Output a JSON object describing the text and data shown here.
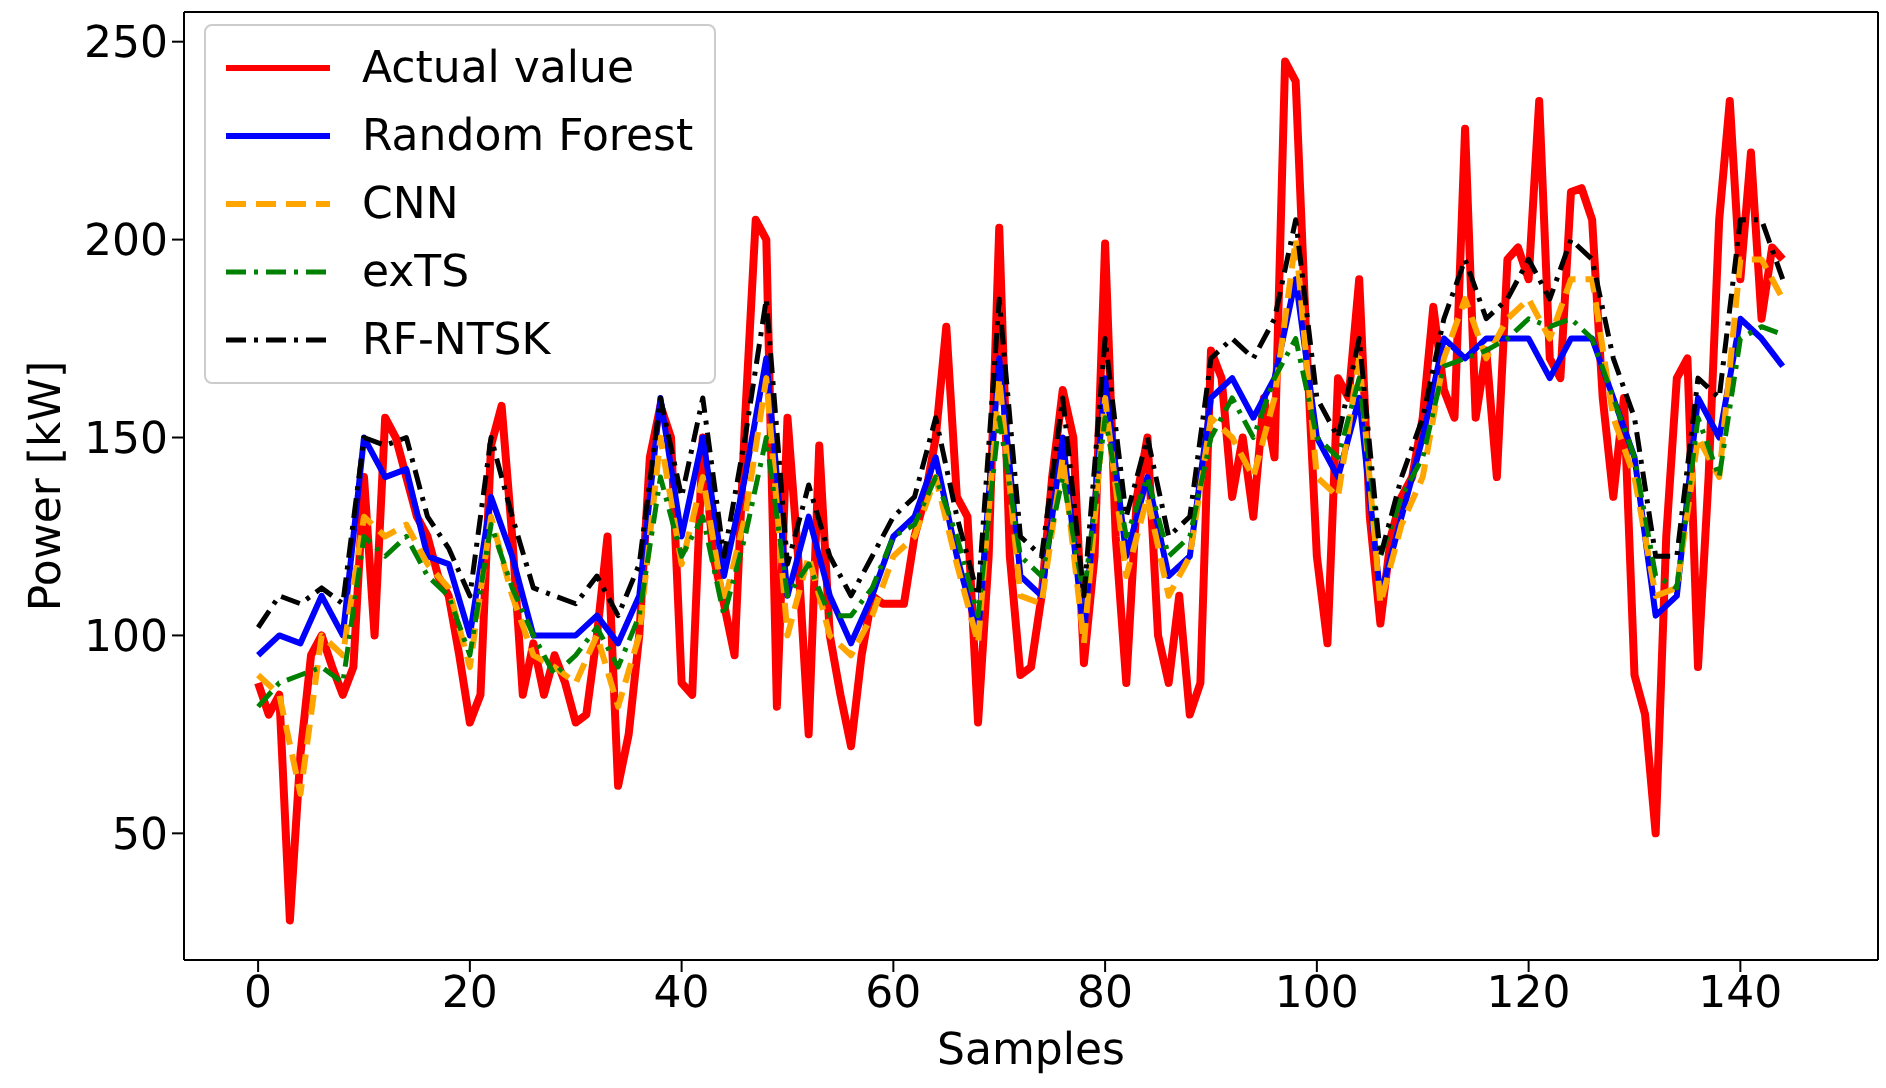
{
  "chart_data": {
    "type": "line",
    "xlabel": "Samples",
    "ylabel": "Power [kW]",
    "xlim": [
      -7,
      153
    ],
    "ylim": [
      18,
      257.5
    ],
    "xticks": [
      0,
      20,
      40,
      60,
      80,
      100,
      120,
      140
    ],
    "yticks": [
      50,
      100,
      150,
      200,
      250
    ],
    "legend": "top left",
    "marker": "none",
    "series": [
      {
        "name": "Actual value",
        "color": "#ff0000",
        "line_style": "solid",
        "x": [
          0,
          1,
          2,
          3,
          4,
          5,
          6,
          7,
          8,
          9,
          10,
          11,
          12,
          13,
          14,
          15,
          16,
          17,
          18,
          19,
          20,
          21,
          22,
          23,
          24,
          25,
          26,
          27,
          28,
          29,
          30,
          31,
          32,
          33,
          34,
          35,
          36,
          37,
          38,
          39,
          40,
          41,
          42,
          43,
          44,
          45,
          46,
          47,
          48,
          49,
          50,
          51,
          52,
          53,
          54,
          55,
          56,
          57,
          58,
          59,
          60,
          61,
          62,
          63,
          64,
          65,
          66,
          67,
          68,
          69,
          70,
          71,
          72,
          73,
          74,
          75,
          76,
          77,
          78,
          79,
          80,
          81,
          82,
          83,
          84,
          85,
          86,
          87,
          88,
          89,
          90,
          91,
          92,
          93,
          94,
          95,
          96,
          97,
          98,
          99,
          100,
          101,
          102,
          103,
          104,
          105,
          106,
          107,
          108,
          109,
          110,
          111,
          112,
          113,
          114,
          115,
          116,
          117,
          118,
          119,
          120,
          121,
          122,
          123,
          124,
          125,
          126,
          127,
          128,
          129,
          130,
          131,
          132,
          133,
          134,
          135,
          136,
          137,
          138,
          139,
          140,
          141,
          142,
          143,
          144
        ],
        "values": [
          88,
          80,
          85,
          28,
          70,
          95,
          100,
          92,
          85,
          92,
          140,
          100,
          155,
          150,
          140,
          130,
          125,
          115,
          110,
          95,
          78,
          85,
          148,
          158,
          125,
          85,
          98,
          85,
          95,
          88,
          78,
          80,
          100,
          125,
          62,
          75,
          100,
          145,
          158,
          150,
          88,
          85,
          150,
          120,
          108,
          95,
          155,
          205,
          200,
          82,
          155,
          120,
          75,
          148,
          100,
          85,
          72,
          95,
          110,
          108,
          108,
          108,
          125,
          135,
          150,
          178,
          135,
          130,
          78,
          120,
          203,
          120,
          90,
          92,
          110,
          140,
          162,
          150,
          93,
          120,
          199,
          125,
          88,
          135,
          150,
          100,
          88,
          110,
          80,
          88,
          172,
          165,
          135,
          150,
          130,
          160,
          145,
          245,
          240,
          175,
          120,
          98,
          165,
          160,
          190,
          130,
          103,
          125,
          135,
          140,
          155,
          183,
          162,
          155,
          228,
          155,
          172,
          140,
          195,
          198,
          190,
          235,
          170,
          165,
          212,
          213,
          205,
          160,
          135,
          160,
          90,
          80,
          50,
          125,
          165,
          170,
          92,
          140,
          205,
          235,
          190,
          222,
          180,
          198,
          195
        ]
      },
      {
        "name": "Random Forest",
        "color": "#0000ff",
        "line_style": "solid",
        "x": [
          0,
          2,
          4,
          6,
          8,
          10,
          12,
          14,
          16,
          18,
          20,
          22,
          24,
          26,
          28,
          30,
          32,
          34,
          36,
          38,
          40,
          42,
          44,
          46,
          48,
          50,
          52,
          54,
          56,
          58,
          60,
          62,
          64,
          66,
          68,
          70,
          72,
          74,
          76,
          78,
          80,
          82,
          84,
          86,
          88,
          90,
          92,
          94,
          96,
          98,
          100,
          102,
          104,
          106,
          108,
          110,
          112,
          114,
          116,
          118,
          120,
          122,
          124,
          126,
          128,
          130,
          132,
          134,
          136,
          138,
          140,
          142,
          144
        ],
        "values": [
          95,
          100,
          98,
          110,
          100,
          150,
          140,
          142,
          120,
          118,
          100,
          135,
          120,
          100,
          100,
          100,
          105,
          98,
          110,
          160,
          125,
          150,
          115,
          140,
          170,
          110,
          130,
          110,
          98,
          110,
          125,
          130,
          145,
          120,
          100,
          170,
          115,
          110,
          150,
          100,
          165,
          120,
          140,
          115,
          120,
          160,
          165,
          155,
          165,
          190,
          150,
          140,
          160,
          110,
          130,
          150,
          175,
          170,
          175,
          175,
          175,
          165,
          175,
          175,
          160,
          145,
          105,
          110,
          160,
          150,
          180,
          175,
          168
        ]
      },
      {
        "name": "CNN",
        "color": "#ffa500",
        "line_style": "dashed",
        "x": [
          0,
          2,
          4,
          6,
          8,
          10,
          12,
          14,
          16,
          18,
          20,
          22,
          24,
          26,
          28,
          30,
          32,
          34,
          36,
          38,
          40,
          42,
          44,
          46,
          48,
          50,
          52,
          54,
          56,
          58,
          60,
          62,
          64,
          66,
          68,
          70,
          72,
          74,
          76,
          78,
          80,
          82,
          84,
          86,
          88,
          90,
          92,
          94,
          96,
          98,
          100,
          102,
          104,
          106,
          108,
          110,
          112,
          114,
          116,
          118,
          120,
          122,
          124,
          126,
          128,
          130,
          132,
          134,
          136,
          138,
          140,
          142,
          144
        ],
        "values": [
          90,
          85,
          60,
          100,
          95,
          130,
          125,
          128,
          118,
          112,
          92,
          130,
          110,
          95,
          92,
          88,
          100,
          82,
          100,
          150,
          118,
          140,
          108,
          130,
          165,
          100,
          120,
          100,
          95,
          105,
          120,
          125,
          140,
          118,
          98,
          165,
          110,
          108,
          145,
          98,
          160,
          115,
          135,
          110,
          120,
          155,
          150,
          140,
          160,
          200,
          140,
          135,
          170,
          108,
          128,
          140,
          170,
          185,
          170,
          180,
          185,
          175,
          190,
          190,
          155,
          140,
          110,
          112,
          150,
          140,
          195,
          195,
          185
        ]
      },
      {
        "name": "exTS",
        "color": "#008000",
        "line_style": "dashdot",
        "x": [
          0,
          2,
          4,
          6,
          8,
          10,
          12,
          14,
          16,
          18,
          20,
          22,
          24,
          26,
          28,
          30,
          32,
          34,
          36,
          38,
          40,
          42,
          44,
          46,
          48,
          50,
          52,
          54,
          56,
          58,
          60,
          62,
          64,
          66,
          68,
          70,
          72,
          74,
          76,
          78,
          80,
          82,
          84,
          86,
          88,
          90,
          92,
          94,
          96,
          98,
          100,
          102,
          104,
          106,
          108,
          110,
          112,
          114,
          116,
          118,
          120,
          122,
          124,
          126,
          128,
          130,
          132,
          134,
          136,
          138,
          140,
          142,
          144
        ],
        "values": [
          82,
          88,
          90,
          92,
          88,
          125,
          120,
          125,
          115,
          110,
          95,
          128,
          112,
          100,
          90,
          95,
          102,
          92,
          105,
          140,
          120,
          130,
          105,
          125,
          150,
          110,
          118,
          105,
          105,
          112,
          125,
          128,
          140,
          125,
          105,
          155,
          120,
          115,
          140,
          110,
          155,
          125,
          140,
          120,
          125,
          150,
          160,
          150,
          165,
          175,
          150,
          145,
          165,
          120,
          135,
          145,
          168,
          170,
          172,
          175,
          180,
          178,
          180,
          175,
          160,
          145,
          115,
          112,
          155,
          140,
          175,
          178,
          176
        ]
      },
      {
        "name": "RF-NTSK",
        "color": "#000000",
        "line_style": "dashdot",
        "x": [
          0,
          2,
          4,
          6,
          8,
          10,
          12,
          14,
          16,
          18,
          20,
          22,
          24,
          26,
          28,
          30,
          32,
          34,
          36,
          38,
          40,
          42,
          44,
          46,
          48,
          50,
          52,
          54,
          56,
          58,
          60,
          62,
          64,
          66,
          68,
          70,
          72,
          74,
          76,
          78,
          80,
          82,
          84,
          86,
          88,
          90,
          92,
          94,
          96,
          98,
          100,
          102,
          104,
          106,
          108,
          110,
          112,
          114,
          116,
          118,
          120,
          122,
          124,
          126,
          128,
          130,
          132,
          134,
          136,
          138,
          140,
          142,
          144
        ],
        "values": [
          102,
          110,
          108,
          112,
          108,
          150,
          148,
          150,
          130,
          122,
          110,
          150,
          130,
          112,
          110,
          108,
          115,
          105,
          118,
          160,
          135,
          160,
          120,
          150,
          185,
          118,
          138,
          120,
          110,
          120,
          130,
          135,
          155,
          130,
          110,
          185,
          125,
          120,
          160,
          110,
          175,
          130,
          150,
          125,
          130,
          170,
          175,
          170,
          180,
          205,
          160,
          150,
          175,
          120,
          140,
          155,
          180,
          195,
          180,
          185,
          195,
          185,
          200,
          195,
          170,
          155,
          120,
          120,
          165,
          160,
          205,
          205,
          190
        ]
      }
    ]
  }
}
